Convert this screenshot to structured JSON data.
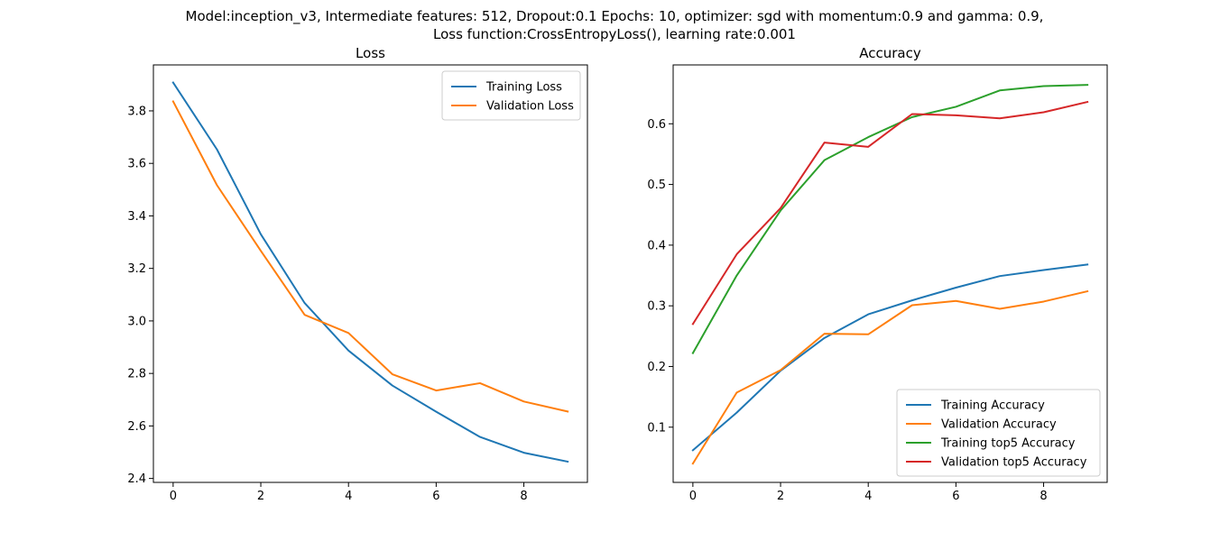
{
  "figure": {
    "title_line1": "Model:inception_v3, Intermediate features: 512, Dropout:0.1 Epochs: 10, optimizer: sgd with momentum:0.9 and gamma: 0.9,",
    "title_line2": "Loss function:CrossEntropyLoss(), learning rate:0.001"
  },
  "chart_data": [
    {
      "type": "line",
      "title": "Loss",
      "xlabel": "",
      "ylabel": "",
      "x": [
        0,
        1,
        2,
        3,
        4,
        5,
        6,
        7,
        8,
        9
      ],
      "xlim": [
        -0.45,
        9.45
      ],
      "ylim": [
        2.385,
        3.975
      ],
      "xticks": [
        0,
        2,
        4,
        6,
        8
      ],
      "yticks": [
        2.4,
        2.6,
        2.8,
        3.0,
        3.2,
        3.4,
        3.6,
        3.8
      ],
      "ytick_labels": [
        "2.4",
        "2.6",
        "2.8",
        "3.0",
        "3.2",
        "3.4",
        "3.6",
        "3.8"
      ],
      "grid": false,
      "legend_position": "top-right",
      "series": [
        {
          "name": "Training Loss",
          "color": "#1f77b4",
          "values": [
            3.908,
            3.653,
            3.33,
            3.068,
            2.887,
            2.754,
            2.654,
            2.558,
            2.498,
            2.464
          ]
        },
        {
          "name": "Validation Loss",
          "color": "#ff7f0e",
          "values": [
            3.836,
            3.517,
            3.267,
            3.023,
            2.954,
            2.797,
            2.735,
            2.763,
            2.693,
            2.655
          ]
        }
      ]
    },
    {
      "type": "line",
      "title": "Accuracy",
      "xlabel": "",
      "ylabel": "",
      "x": [
        0,
        1,
        2,
        3,
        4,
        5,
        6,
        7,
        8,
        9
      ],
      "xlim": [
        -0.45,
        9.45
      ],
      "ylim": [
        0.009,
        0.697
      ],
      "xticks": [
        0,
        2,
        4,
        6,
        8
      ],
      "yticks": [
        0.1,
        0.2,
        0.3,
        0.4,
        0.5,
        0.6
      ],
      "ytick_labels": [
        "0.1",
        "0.2",
        "0.3",
        "0.4",
        "0.5",
        "0.6"
      ],
      "grid": false,
      "legend_position": "bottom-right",
      "series": [
        {
          "name": "Training Accuracy",
          "color": "#1f77b4",
          "values": [
            0.062,
            0.124,
            0.193,
            0.247,
            0.286,
            0.309,
            0.33,
            0.349,
            0.359,
            0.368
          ]
        },
        {
          "name": "Validation Accuracy",
          "color": "#ff7f0e",
          "values": [
            0.04,
            0.157,
            0.194,
            0.254,
            0.253,
            0.301,
            0.308,
            0.295,
            0.307,
            0.324
          ]
        },
        {
          "name": "Training top5 Accuracy",
          "color": "#2ca02c",
          "values": [
            0.222,
            0.35,
            0.457,
            0.54,
            0.578,
            0.611,
            0.628,
            0.655,
            0.662,
            0.664
          ]
        },
        {
          "name": "Validation top5 Accuracy",
          "color": "#d62728",
          "values": [
            0.27,
            0.385,
            0.461,
            0.569,
            0.562,
            0.616,
            0.614,
            0.609,
            0.619,
            0.636
          ]
        }
      ]
    }
  ]
}
